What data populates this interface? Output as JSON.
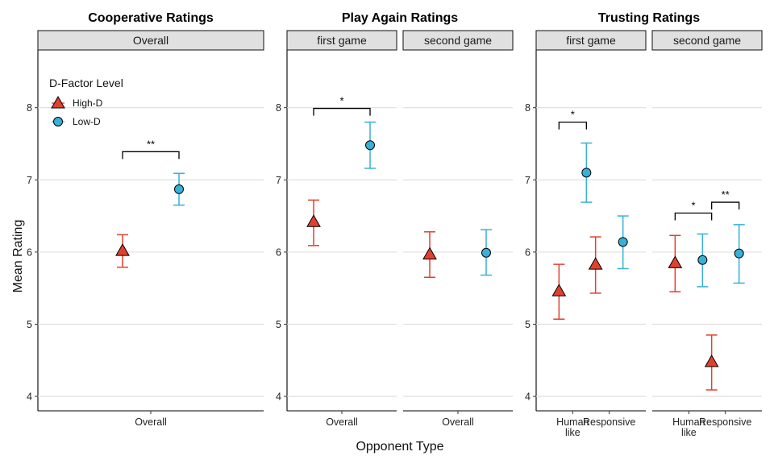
{
  "chart_data": {
    "type": "scatter",
    "y_label": "Mean Rating",
    "x_label": "Opponent Type",
    "ylim": [
      3.8,
      8.8
    ],
    "y_ticks": [
      4,
      5,
      6,
      7,
      8
    ],
    "grid": "horizontal major only",
    "legend": {
      "title": "D-Factor Level",
      "placement": "top-left inside first panel",
      "entries": [
        {
          "label": "High-D",
          "shape": "triangle",
          "color": "#e2402f"
        },
        {
          "label": "Low-D",
          "shape": "circle",
          "color": "#39b0d6"
        }
      ]
    },
    "groups": [
      {
        "title": "Cooperative Ratings",
        "facets": [
          {
            "strip": "Overall",
            "categories": [
              {
                "label": "Overall"
              }
            ],
            "series": [
              {
                "name": "High-D",
                "values": [
                  {
                    "x": "Overall",
                    "mean": 6.02,
                    "lower": 5.79,
                    "upper": 6.24
                  }
                ]
              },
              {
                "name": "Low-D",
                "values": [
                  {
                    "x": "Overall",
                    "mean": 6.87,
                    "lower": 6.65,
                    "upper": 7.09
                  }
                ]
              }
            ],
            "significance": [
              {
                "text": "**",
                "from": {
                  "x": "Overall",
                  "series": "High-D"
                },
                "to": {
                  "x": "Overall",
                  "series": "Low-D"
                },
                "y": 7.39
              }
            ]
          }
        ]
      },
      {
        "title": "Play Again Ratings",
        "facets": [
          {
            "strip": "first game",
            "categories": [
              {
                "label": "Overall"
              }
            ],
            "series": [
              {
                "name": "High-D",
                "values": [
                  {
                    "x": "Overall",
                    "mean": 6.42,
                    "lower": 6.09,
                    "upper": 6.72
                  }
                ]
              },
              {
                "name": "Low-D",
                "values": [
                  {
                    "x": "Overall",
                    "mean": 7.48,
                    "lower": 7.16,
                    "upper": 7.8
                  }
                ]
              }
            ],
            "significance": [
              {
                "text": "*",
                "from": {
                  "x": "Overall",
                  "series": "High-D"
                },
                "to": {
                  "x": "Overall",
                  "series": "Low-D"
                },
                "y": 7.99
              }
            ]
          },
          {
            "strip": "second game",
            "categories": [
              {
                "label": "Overall"
              }
            ],
            "series": [
              {
                "name": "High-D",
                "values": [
                  {
                    "x": "Overall",
                    "mean": 5.97,
                    "lower": 5.65,
                    "upper": 6.28
                  }
                ]
              },
              {
                "name": "Low-D",
                "values": [
                  {
                    "x": "Overall",
                    "mean": 5.99,
                    "lower": 5.68,
                    "upper": 6.31
                  }
                ]
              }
            ],
            "significance": []
          }
        ]
      },
      {
        "title": "Trusting Ratings",
        "facets": [
          {
            "strip": "first game",
            "categories": [
              {
                "label": "Human like",
                "lines": [
                  "Human",
                  "like"
                ]
              },
              {
                "label": "Responsive"
              }
            ],
            "series": [
              {
                "name": "High-D",
                "values": [
                  {
                    "x": "Human like",
                    "mean": 5.46,
                    "lower": 5.07,
                    "upper": 5.83
                  },
                  {
                    "x": "Responsive",
                    "mean": 5.83,
                    "lower": 5.43,
                    "upper": 6.21
                  }
                ]
              },
              {
                "name": "Low-D",
                "values": [
                  {
                    "x": "Human like",
                    "mean": 7.1,
                    "lower": 6.69,
                    "upper": 7.51
                  },
                  {
                    "x": "Responsive",
                    "mean": 6.14,
                    "lower": 5.77,
                    "upper": 6.5
                  }
                ]
              }
            ],
            "significance": [
              {
                "text": "*",
                "from": {
                  "x": "Human like",
                  "series": "High-D"
                },
                "to": {
                  "x": "Human like",
                  "series": "Low-D"
                },
                "y": 7.8
              }
            ]
          },
          {
            "strip": "second game",
            "categories": [
              {
                "label": "Human like",
                "lines": [
                  "Human",
                  "like"
                ]
              },
              {
                "label": "Responsive"
              }
            ],
            "series": [
              {
                "name": "High-D",
                "values": [
                  {
                    "x": "Human like",
                    "mean": 5.85,
                    "lower": 5.45,
                    "upper": 6.23
                  },
                  {
                    "x": "Responsive",
                    "mean": 4.48,
                    "lower": 4.09,
                    "upper": 4.85
                  }
                ]
              },
              {
                "name": "Low-D",
                "values": [
                  {
                    "x": "Human like",
                    "mean": 5.89,
                    "lower": 5.52,
                    "upper": 6.25
                  },
                  {
                    "x": "Responsive",
                    "mean": 5.98,
                    "lower": 5.57,
                    "upper": 6.38
                  }
                ]
              }
            ],
            "significance": [
              {
                "text": "*",
                "from": {
                  "x": "Human like",
                  "series": "High-D"
                },
                "to": {
                  "x": "Responsive",
                  "series": "High-D"
                },
                "y": 6.54
              },
              {
                "text": "**",
                "from": {
                  "x": "Responsive",
                  "series": "High-D"
                },
                "to": {
                  "x": "Responsive",
                  "series": "Low-D"
                },
                "y": 6.69
              }
            ]
          }
        ]
      }
    ]
  }
}
